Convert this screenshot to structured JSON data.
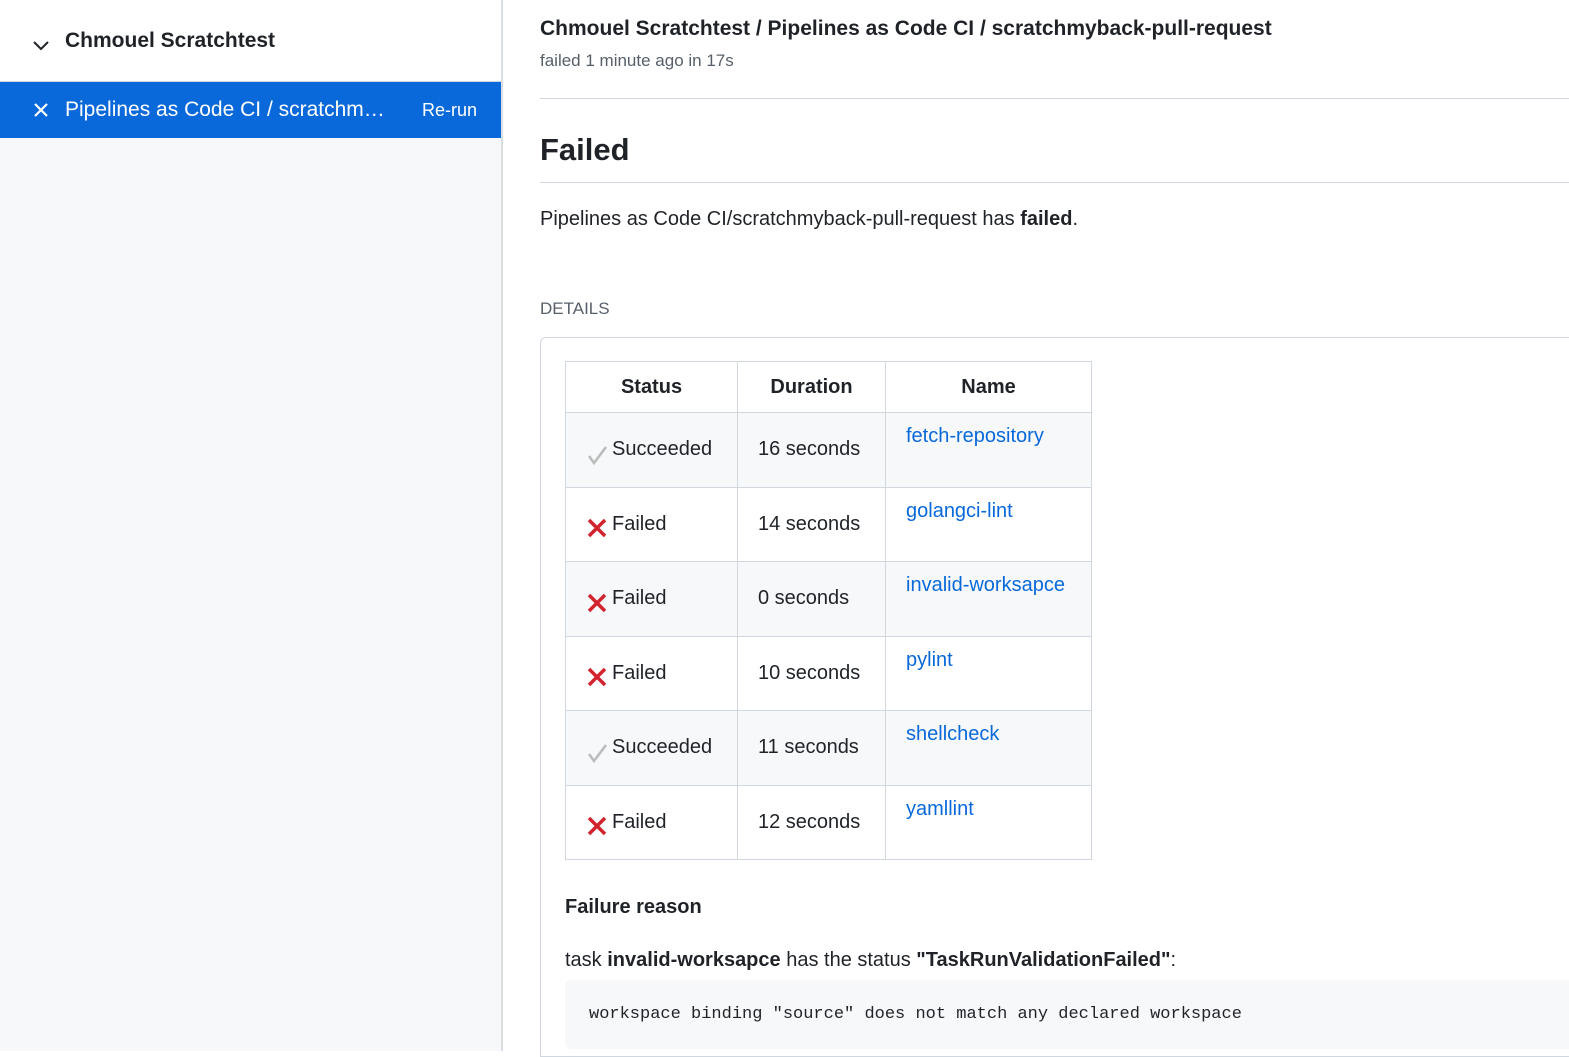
{
  "sidebar": {
    "repo": "Chmouel Scratchtest",
    "item": {
      "label": "Pipelines as Code CI / scratchm…",
      "rerun": "Re-run",
      "status_icon": "close-icon"
    }
  },
  "header": {
    "breadcrumb": "Chmouel Scratchtest / Pipelines as Code CI / scratchmyback-pull-request",
    "subtitle": "failed 1 minute ago in 17s"
  },
  "main": {
    "title": "Failed",
    "summary_prefix": "Pipelines as Code CI/scratchmyback-pull-request has ",
    "summary_bold": "failed",
    "summary_suffix": ".",
    "details_label": "DETAILS",
    "table": {
      "headers": [
        "Status",
        "Duration",
        "Name"
      ],
      "rows": [
        {
          "status": "Succeeded",
          "icon": "check-icon",
          "duration": "16 seconds",
          "name": "fetch-repository"
        },
        {
          "status": "Failed",
          "icon": "x-icon",
          "duration": "14 seconds",
          "name": "golangci-lint"
        },
        {
          "status": "Failed",
          "icon": "x-icon",
          "duration": "0 seconds",
          "name": "invalid-worksapce"
        },
        {
          "status": "Failed",
          "icon": "x-icon",
          "duration": "10 seconds",
          "name": "pylint"
        },
        {
          "status": "Succeeded",
          "icon": "check-icon",
          "duration": "11 seconds",
          "name": "shellcheck"
        },
        {
          "status": "Failed",
          "icon": "x-icon",
          "duration": "12 seconds",
          "name": "yamllint"
        }
      ]
    },
    "failure": {
      "heading": "Failure reason",
      "p1": "task ",
      "task": "invalid-worksapce",
      "p2": " has the status ",
      "status": "\"TaskRunValidationFailed\"",
      "p3": ":",
      "code": "workspace binding \"source\" does not match any declared workspace"
    }
  },
  "colors": {
    "accent": "#0969da",
    "failed": "#d1242f"
  }
}
